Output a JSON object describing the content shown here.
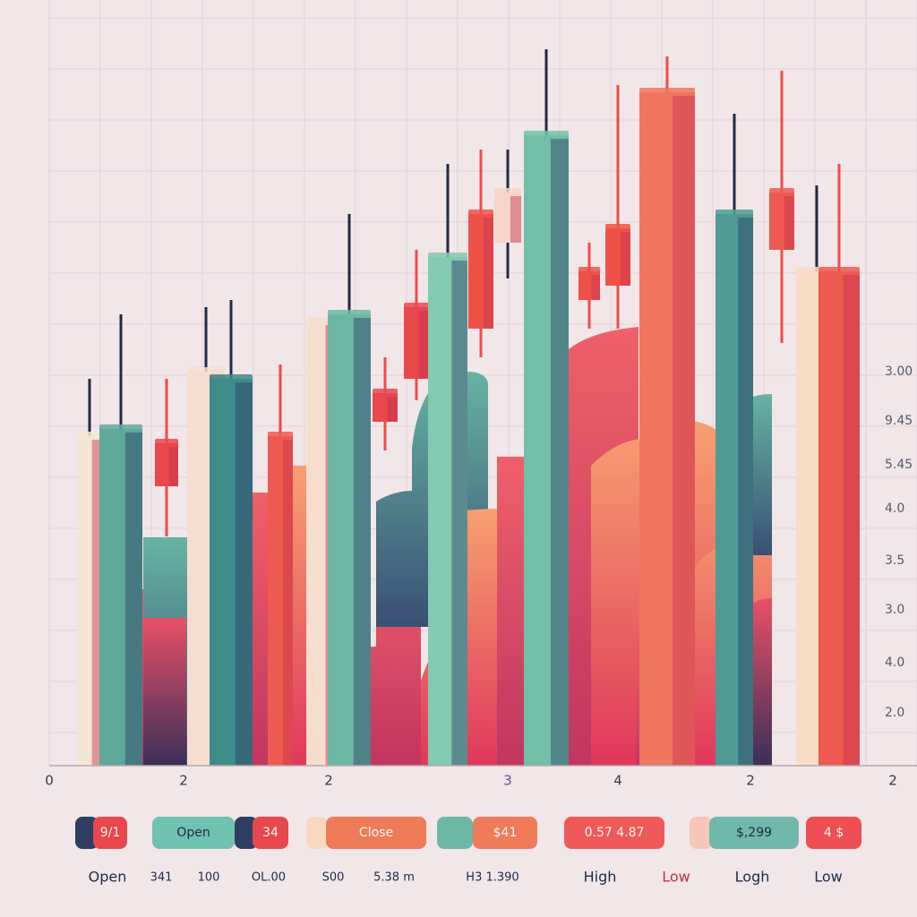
{
  "chart_data": {
    "type": "candlestick",
    "open": [
      0,
      0,
      39,
      0,
      0,
      0,
      0,
      0,
      48,
      54,
      0,
      61,
      73,
      0,
      65,
      67,
      0,
      0,
      72,
      0,
      0
    ],
    "close": [
      46,
      47,
      45,
      55,
      54,
      46,
      62,
      63,
      52,
      64,
      71,
      77,
      80,
      88,
      69,
      75,
      94,
      77,
      80,
      69,
      69
    ],
    "high": [
      54,
      63,
      54,
      64,
      65,
      56,
      62,
      77,
      57,
      72,
      84,
      86,
      86,
      100,
      73,
      95,
      99,
      91,
      97,
      81,
      84
    ],
    "low": [
      0,
      0,
      32,
      0,
      0,
      0,
      0,
      0,
      44,
      51,
      0,
      57,
      68,
      0,
      61,
      61,
      0,
      0,
      59,
      0,
      0
    ],
    "colors": [
      "#f5e6d4",
      "#5ea99a",
      "#e8474c",
      "#f7ddd0",
      "#3e8c8a",
      "#ee5a4f",
      "#f7ddcc",
      "#6cb8a4",
      "#e8474c",
      "#e8474c",
      "#84c9b2",
      "#ee5247",
      "#f6d6c8",
      "#72bfa8",
      "#ee5247",
      "#ee5247",
      "#f07560",
      "#4f9a94",
      "#ee5a4f",
      "#f9dcc6",
      "#ee5a50"
    ],
    "ylim": [
      0,
      100
    ],
    "axis_labels": [
      "3.00",
      "9.45",
      "5.45",
      "4.0",
      "3.5",
      "3.0",
      "4.0",
      "2.0"
    ],
    "x_labels": [
      "0",
      "2",
      "2",
      "3",
      "4",
      "2",
      "2"
    ],
    "legend_chips": [
      "9/1",
      "Open",
      "34",
      "Close",
      "$41",
      "0.57  4.87",
      "$,299",
      "4  $"
    ],
    "footer_labels": [
      "Open",
      "341",
      "100",
      "OL.00",
      "S00",
      "5.38 m",
      "H3 1.390",
      "High",
      "Low",
      "Logh",
      "Low"
    ]
  }
}
